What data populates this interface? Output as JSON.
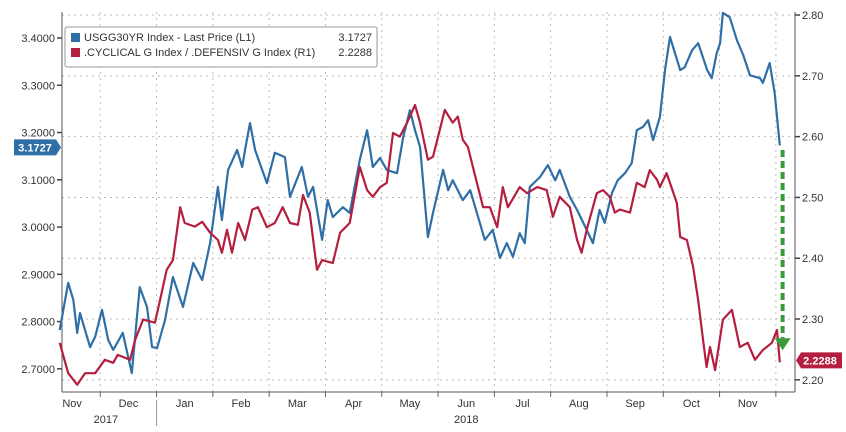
{
  "chart_data": {
    "type": "line",
    "title": "",
    "legend_placement": "top-left",
    "legend": [
      {
        "label": "USGG30YR Index - Last Price (L1)",
        "last": "3.1727",
        "color": "#2f6fa6"
      },
      {
        "label": ".CYCLICAL G Index / .DEFENSIV G Index (R1)",
        "last": "2.2288",
        "color": "#b41f3f"
      }
    ],
    "x_unit": "months since Nov 1 2017",
    "xlim": [
      0.32,
      13.34
    ],
    "x_ticks": [
      {
        "label": "Nov",
        "t": 0.5
      },
      {
        "label": "Dec",
        "t": 1.5
      },
      {
        "label": "Jan",
        "t": 2.5
      },
      {
        "label": "Feb",
        "t": 3.5
      },
      {
        "label": "Mar",
        "t": 4.5
      },
      {
        "label": "Apr",
        "t": 5.5
      },
      {
        "label": "May",
        "t": 6.5
      },
      {
        "label": "Jun",
        "t": 7.5
      },
      {
        "label": "Jul",
        "t": 8.5
      },
      {
        "label": "Aug",
        "t": 9.5
      },
      {
        "label": "Sep",
        "t": 10.5
      },
      {
        "label": "Oct",
        "t": 11.5
      },
      {
        "label": "Nov",
        "t": 12.5
      }
    ],
    "years": [
      {
        "label": "2017",
        "t": 1.1
      },
      {
        "label": "2018",
        "t": 7.5
      }
    ],
    "y_left": {
      "lim": [
        2.651,
        3.455
      ],
      "ticks": [
        "3.4000",
        "3.3000",
        "3.2000",
        "3.1000",
        "3.0000",
        "2.9000",
        "2.8000",
        "2.7000"
      ]
    },
    "y_right": {
      "lim": [
        2.18,
        2.805
      ],
      "ticks": [
        "2.80",
        "2.70",
        "2.60",
        "2.50",
        "2.40",
        "2.30",
        "2.20"
      ]
    },
    "grid": true,
    "annotation": "green dashed down arrow at latest date from 2.58 to 2.25 (right axis)",
    "series": [
      {
        "name": "USGG30YR Index - Last Price (L1)",
        "axis": "left",
        "color": "#2f6fa6",
        "points": [
          [
            0.28,
            2.782
          ],
          [
            0.43,
            2.882
          ],
          [
            0.52,
            2.846
          ],
          [
            0.59,
            2.776
          ],
          [
            0.64,
            2.818
          ],
          [
            0.82,
            2.746
          ],
          [
            0.91,
            2.768
          ],
          [
            1.03,
            2.825
          ],
          [
            1.14,
            2.761
          ],
          [
            1.23,
            2.74
          ],
          [
            1.4,
            2.776
          ],
          [
            1.56,
            2.691
          ],
          [
            1.7,
            2.873
          ],
          [
            1.83,
            2.831
          ],
          [
            1.92,
            2.746
          ],
          [
            2.01,
            2.744
          ],
          [
            2.15,
            2.803
          ],
          [
            2.29,
            2.894
          ],
          [
            2.47,
            2.831
          ],
          [
            2.65,
            2.924
          ],
          [
            2.81,
            2.888
          ],
          [
            2.95,
            2.966
          ],
          [
            3.09,
            3.085
          ],
          [
            3.16,
            3.015
          ],
          [
            3.27,
            3.121
          ],
          [
            3.43,
            3.163
          ],
          [
            3.52,
            3.127
          ],
          [
            3.57,
            3.163
          ],
          [
            3.66,
            3.22
          ],
          [
            3.75,
            3.163
          ],
          [
            3.96,
            3.093
          ],
          [
            4.1,
            3.157
          ],
          [
            4.28,
            3.148
          ],
          [
            4.37,
            3.064
          ],
          [
            4.58,
            3.127
          ],
          [
            4.69,
            3.064
          ],
          [
            4.78,
            3.085
          ],
          [
            4.94,
            2.973
          ],
          [
            5.04,
            3.057
          ],
          [
            5.13,
            3.021
          ],
          [
            5.31,
            3.042
          ],
          [
            5.43,
            3.03
          ],
          [
            5.61,
            3.142
          ],
          [
            5.74,
            3.205
          ],
          [
            5.84,
            3.127
          ],
          [
            5.97,
            3.146
          ],
          [
            6.09,
            3.121
          ],
          [
            6.27,
            3.114
          ],
          [
            6.38,
            3.19
          ],
          [
            6.5,
            3.247
          ],
          [
            6.59,
            3.205
          ],
          [
            6.68,
            3.169
          ],
          [
            6.82,
            2.979
          ],
          [
            6.91,
            3.03
          ],
          [
            7.09,
            3.121
          ],
          [
            7.18,
            3.078
          ],
          [
            7.26,
            3.099
          ],
          [
            7.44,
            3.057
          ],
          [
            7.57,
            3.078
          ],
          [
            7.69,
            3.03
          ],
          [
            7.83,
            2.973
          ],
          [
            7.97,
            2.994
          ],
          [
            8.1,
            2.935
          ],
          [
            8.22,
            2.966
          ],
          [
            8.33,
            2.937
          ],
          [
            8.45,
            2.987
          ],
          [
            8.54,
            2.966
          ],
          [
            8.63,
            3.085
          ],
          [
            8.81,
            3.106
          ],
          [
            8.95,
            3.131
          ],
          [
            9.08,
            3.099
          ],
          [
            9.16,
            3.121
          ],
          [
            9.34,
            3.064
          ],
          [
            9.47,
            3.036
          ],
          [
            9.64,
            2.994
          ],
          [
            9.75,
            2.966
          ],
          [
            9.87,
            3.036
          ],
          [
            9.96,
            3.009
          ],
          [
            10.09,
            3.072
          ],
          [
            10.19,
            3.099
          ],
          [
            10.32,
            3.114
          ],
          [
            10.44,
            3.135
          ],
          [
            10.53,
            3.205
          ],
          [
            10.64,
            3.212
          ],
          [
            10.73,
            3.226
          ],
          [
            10.82,
            3.184
          ],
          [
            10.94,
            3.233
          ],
          [
            11.03,
            3.332
          ],
          [
            11.12,
            3.402
          ],
          [
            11.3,
            3.332
          ],
          [
            11.38,
            3.338
          ],
          [
            11.51,
            3.374
          ],
          [
            11.62,
            3.389
          ],
          [
            11.78,
            3.332
          ],
          [
            11.86,
            3.315
          ],
          [
            11.95,
            3.368
          ],
          [
            12.01,
            3.389
          ],
          [
            12.06,
            3.453
          ],
          [
            12.18,
            3.444
          ],
          [
            12.31,
            3.395
          ],
          [
            12.42,
            3.364
          ],
          [
            12.54,
            3.321
          ],
          [
            12.72,
            3.315
          ],
          [
            12.77,
            3.305
          ],
          [
            12.89,
            3.347
          ],
          [
            12.98,
            3.283
          ],
          [
            13.07,
            3.1727
          ]
        ]
      },
      {
        "name": ".CYCLICAL G Index / .DEFENSIV G Index (R1)",
        "axis": "right",
        "color": "#b41f3f",
        "points": [
          [
            0.28,
            2.261
          ],
          [
            0.43,
            2.211
          ],
          [
            0.59,
            2.192
          ],
          [
            0.73,
            2.211
          ],
          [
            0.91,
            2.211
          ],
          [
            1.08,
            2.233
          ],
          [
            1.23,
            2.228
          ],
          [
            1.31,
            2.241
          ],
          [
            1.53,
            2.233
          ],
          [
            1.62,
            2.266
          ],
          [
            1.76,
            2.299
          ],
          [
            1.97,
            2.294
          ],
          [
            2.06,
            2.331
          ],
          [
            2.18,
            2.381
          ],
          [
            2.29,
            2.397
          ],
          [
            2.42,
            2.484
          ],
          [
            2.5,
            2.458
          ],
          [
            2.68,
            2.452
          ],
          [
            2.81,
            2.46
          ],
          [
            2.95,
            2.442
          ],
          [
            3.09,
            2.43
          ],
          [
            3.16,
            2.409
          ],
          [
            3.25,
            2.447
          ],
          [
            3.34,
            2.409
          ],
          [
            3.45,
            2.458
          ],
          [
            3.57,
            2.43
          ],
          [
            3.7,
            2.48
          ],
          [
            3.8,
            2.484
          ],
          [
            3.96,
            2.451
          ],
          [
            4.1,
            2.458
          ],
          [
            4.24,
            2.484
          ],
          [
            4.37,
            2.458
          ],
          [
            4.51,
            2.455
          ],
          [
            4.6,
            2.504
          ],
          [
            4.72,
            2.475
          ],
          [
            4.85,
            2.381
          ],
          [
            4.94,
            2.397
          ],
          [
            5.13,
            2.392
          ],
          [
            5.26,
            2.442
          ],
          [
            5.43,
            2.458
          ],
          [
            5.61,
            2.55
          ],
          [
            5.74,
            2.512
          ],
          [
            5.84,
            2.501
          ],
          [
            5.97,
            2.517
          ],
          [
            6.09,
            2.524
          ],
          [
            6.2,
            2.606
          ],
          [
            6.32,
            2.6
          ],
          [
            6.45,
            2.623
          ],
          [
            6.59,
            2.652
          ],
          [
            6.68,
            2.623
          ],
          [
            6.82,
            2.562
          ],
          [
            6.91,
            2.567
          ],
          [
            7.0,
            2.6
          ],
          [
            7.12,
            2.644
          ],
          [
            7.26,
            2.623
          ],
          [
            7.35,
            2.633
          ],
          [
            7.44,
            2.595
          ],
          [
            7.53,
            2.583
          ],
          [
            7.69,
            2.524
          ],
          [
            7.8,
            2.484
          ],
          [
            7.92,
            2.484
          ],
          [
            8.05,
            2.451
          ],
          [
            8.15,
            2.517
          ],
          [
            8.24,
            2.484
          ],
          [
            8.45,
            2.517
          ],
          [
            8.58,
            2.507
          ],
          [
            8.76,
            2.517
          ],
          [
            8.93,
            2.512
          ],
          [
            9.04,
            2.468
          ],
          [
            9.16,
            2.501
          ],
          [
            9.34,
            2.484
          ],
          [
            9.47,
            2.43
          ],
          [
            9.55,
            2.409
          ],
          [
            9.64,
            2.447
          ],
          [
            9.82,
            2.507
          ],
          [
            9.93,
            2.512
          ],
          [
            10.05,
            2.501
          ],
          [
            10.14,
            2.475
          ],
          [
            10.23,
            2.48
          ],
          [
            10.41,
            2.475
          ],
          [
            10.53,
            2.524
          ],
          [
            10.67,
            2.517
          ],
          [
            10.76,
            2.545
          ],
          [
            10.89,
            2.529
          ],
          [
            10.94,
            2.517
          ],
          [
            11.06,
            2.54
          ],
          [
            11.24,
            2.491
          ],
          [
            11.3,
            2.435
          ],
          [
            11.42,
            2.43
          ],
          [
            11.53,
            2.386
          ],
          [
            11.62,
            2.331
          ],
          [
            11.7,
            2.27
          ],
          [
            11.77,
            2.221
          ],
          [
            11.83,
            2.254
          ],
          [
            11.92,
            2.216
          ],
          [
            12.06,
            2.299
          ],
          [
            12.22,
            2.315
          ],
          [
            12.36,
            2.254
          ],
          [
            12.5,
            2.261
          ],
          [
            12.63,
            2.233
          ],
          [
            12.77,
            2.249
          ],
          [
            12.93,
            2.261
          ],
          [
            13.02,
            2.282
          ],
          [
            13.07,
            2.2288
          ]
        ]
      }
    ],
    "arrow": {
      "t": 13.12,
      "from_right": 2.578,
      "to_right": 2.252,
      "color": "#3a9a3a"
    }
  }
}
